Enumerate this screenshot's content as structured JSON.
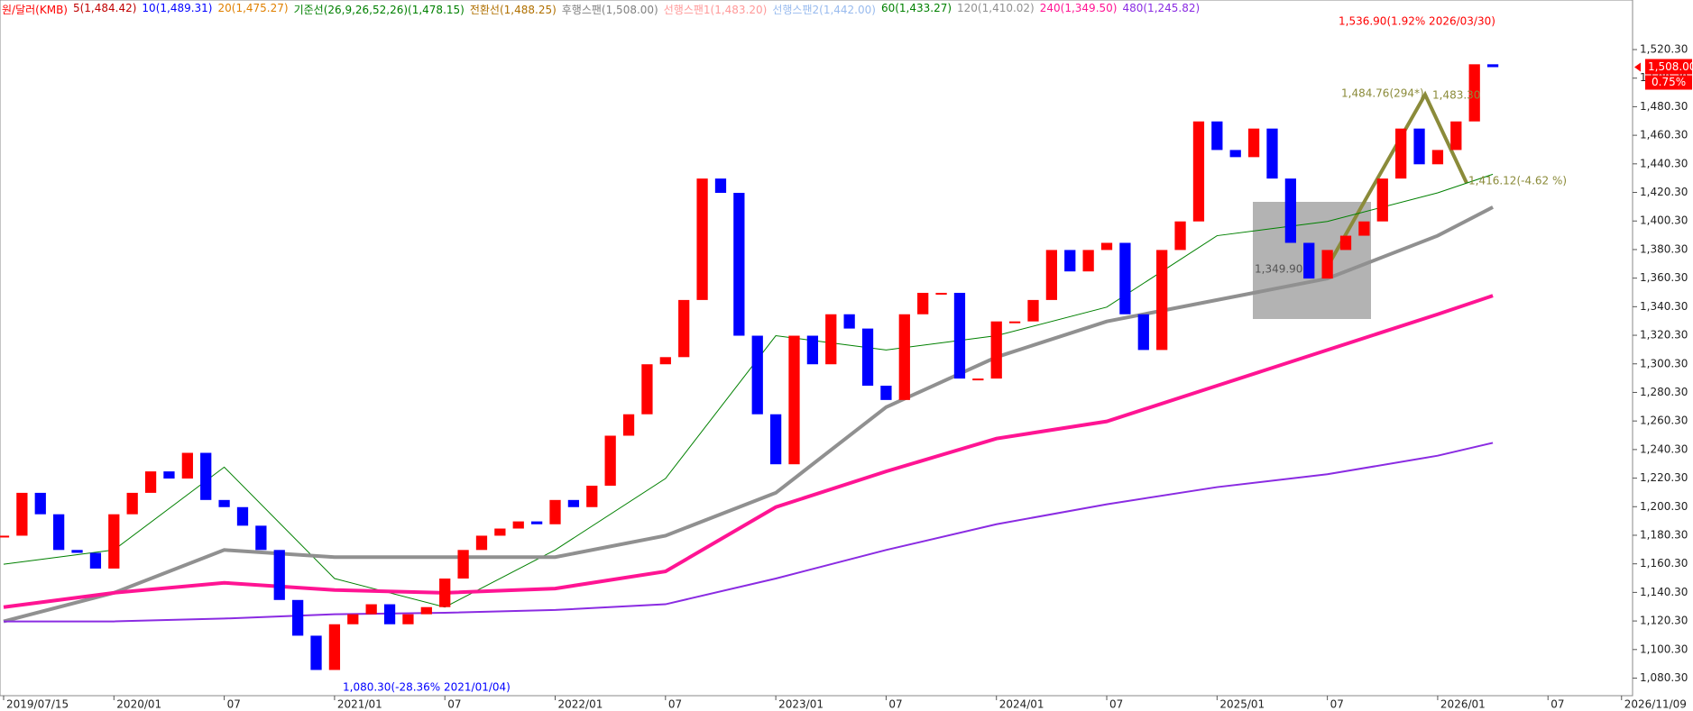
{
  "chart_data": {
    "type": "candle",
    "title": "원/달러(KMB)",
    "legend": [
      {
        "text": "5(1,484.42)",
        "color": "#c00000"
      },
      {
        "text": "10(1,489.31)",
        "color": "#0000ff"
      },
      {
        "text": "20(1,475.27)",
        "color": "#e08000"
      },
      {
        "text": "기준선(26,9,26,52,26)(1,478.15)",
        "color": "#008000"
      },
      {
        "text": "전환선(1,488.25)",
        "color": "#b07000"
      },
      {
        "text": "후행스팬(1,508.00)",
        "color": "#808080"
      },
      {
        "text": "선행스팬1(1,483.20)",
        "color": "#ff9999"
      },
      {
        "text": "선행스팬2(1,442.00)",
        "color": "#99bbee"
      }
    ],
    "categories": [
      "2019/07",
      "2019/08",
      "2019/09",
      "2019/10",
      "2019/11",
      "2019/12",
      "2020/01",
      "2020/02",
      "2020/03",
      "2020/04",
      "2020/05",
      "2020/06",
      "2020/07",
      "2020/08",
      "2020/09",
      "2020/10",
      "2020/11",
      "2020/12",
      "2021/01",
      "2021/02",
      "2021/03",
      "2021/04",
      "2021/05",
      "2021/06",
      "2021/07",
      "2021/08",
      "2021/09",
      "2021/10",
      "2021/11",
      "2021/12",
      "2022/01",
      "2022/02",
      "2022/03",
      "2022/04",
      "2022/05",
      "2022/06",
      "2022/07",
      "2022/08",
      "2022/09",
      "2022/10",
      "2022/11",
      "2022/12",
      "2023/01",
      "2023/02",
      "2023/03",
      "2023/04",
      "2023/05",
      "2023/06",
      "2023/07",
      "2023/08",
      "2023/09",
      "2023/10",
      "2023/11",
      "2023/12",
      "2024/01",
      "2024/02",
      "2024/03",
      "2024/04",
      "2024/05",
      "2024/06",
      "2024/07",
      "2024/08",
      "2024/09",
      "2024/10",
      "2024/11",
      "2024/12",
      "2025/01",
      "2025/02",
      "2025/03",
      "2025/04",
      "2025/05",
      "2025/06",
      "2025/07",
      "2025/08",
      "2025/09",
      "2025/10",
      "2025/11",
      "2025/12",
      "2026/01",
      "2026/02",
      "2026/03",
      "2026/04"
    ],
    "values": [
      1180,
      1210,
      1195,
      1170,
      1168,
      1157,
      1195,
      1210,
      1225,
      1220,
      1238,
      1205,
      1200,
      1187,
      1170,
      1135,
      1110,
      1086,
      1118,
      1125,
      1132,
      1118,
      1125,
      1130,
      1150,
      1170,
      1180,
      1185,
      1190,
      1188,
      1205,
      1200,
      1215,
      1250,
      1265,
      1300,
      1305,
      1345,
      1430,
      1420,
      1320,
      1265,
      1230,
      1320,
      1300,
      1335,
      1325,
      1285,
      1275,
      1335,
      1350,
      1350,
      1290,
      1290,
      1330,
      1330,
      1345,
      1380,
      1365,
      1380,
      1385,
      1335,
      1310,
      1380,
      1400,
      1470,
      1450,
      1445,
      1465,
      1430,
      1385,
      1360,
      1380,
      1390,
      1400,
      1430,
      1465,
      1440,
      1450,
      1470,
      1510,
      1508
    ],
    "up_color": "#ff0000",
    "down_color": "#0000ff",
    "series": [
      {
        "name": "60(1,433.27)",
        "color": "#008000",
        "width": 1,
        "x": [
          "2019/07",
          "2020/01",
          "2020/07",
          "2021/01",
          "2021/07",
          "2022/01",
          "2022/07",
          "2023/01",
          "2023/07",
          "2024/01",
          "2024/07",
          "2025/01",
          "2025/07",
          "2026/01",
          "2026/04"
        ],
        "values": [
          1160,
          1170,
          1228,
          1150,
          1130,
          1170,
          1220,
          1320,
          1310,
          1320,
          1340,
          1390,
          1400,
          1420,
          1433
        ]
      },
      {
        "name": "120(1,410.02)",
        "color": "#909090",
        "width": 4,
        "x": [
          "2019/07",
          "2020/01",
          "2020/07",
          "2021/01",
          "2021/07",
          "2022/01",
          "2022/07",
          "2023/01",
          "2023/07",
          "2024/01",
          "2024/07",
          "2025/01",
          "2025/07",
          "2026/01",
          "2026/04"
        ],
        "values": [
          1120,
          1140,
          1170,
          1165,
          1165,
          1165,
          1180,
          1210,
          1270,
          1305,
          1330,
          1345,
          1360,
          1390,
          1410
        ]
      },
      {
        "name": "240(1,349.50)",
        "color": "#ff1493",
        "width": 4,
        "x": [
          "2019/07",
          "2020/01",
          "2020/07",
          "2021/01",
          "2021/07",
          "2022/01",
          "2022/07",
          "2023/01",
          "2023/07",
          "2024/01",
          "2024/07",
          "2025/01",
          "2025/07",
          "2026/01",
          "2026/04"
        ],
        "values": [
          1130,
          1140,
          1147,
          1142,
          1140,
          1143,
          1155,
          1200,
          1225,
          1248,
          1260,
          1285,
          1310,
          1335,
          1348
        ]
      },
      {
        "name": "480(1,245.82)",
        "color": "#8a2be2",
        "width": 2,
        "x": [
          "2019/07",
          "2020/01",
          "2020/07",
          "2021/01",
          "2021/07",
          "2022/01",
          "2022/07",
          "2023/01",
          "2023/07",
          "2024/01",
          "2024/07",
          "2025/01",
          "2025/07",
          "2026/01",
          "2026/04"
        ],
        "values": [
          1120,
          1120,
          1122,
          1125,
          1126,
          1128,
          1132,
          1150,
          1170,
          1188,
          1202,
          1214,
          1223,
          1236,
          1245
        ]
      }
    ],
    "ylim": [
      1068,
      1555
    ],
    "yticks": [
      {
        "value": 1080.3,
        "label": "1,080.30"
      },
      {
        "value": 1100.3,
        "label": "1,100.30"
      },
      {
        "value": 1120.3,
        "label": "1,120.30"
      },
      {
        "value": 1140.3,
        "label": "1,140.30"
      },
      {
        "value": 1160.3,
        "label": "1,160.30"
      },
      {
        "value": 1180.3,
        "label": "1,180.30"
      },
      {
        "value": 1200.3,
        "label": "1,200.30"
      },
      {
        "value": 1220.3,
        "label": "1,220.30"
      },
      {
        "value": 1240.3,
        "label": "1,240.30"
      },
      {
        "value": 1260.3,
        "label": "1,260.30"
      },
      {
        "value": 1280.3,
        "label": "1,280.30"
      },
      {
        "value": 1300.3,
        "label": "1,300.30"
      },
      {
        "value": 1320.3,
        "label": "1,320.30"
      },
      {
        "value": 1340.3,
        "label": "1,340.30"
      },
      {
        "value": 1360.3,
        "label": "1,360.30"
      },
      {
        "value": 1380.3,
        "label": "1,380.30"
      },
      {
        "value": 1400.3,
        "label": "1,400.30"
      },
      {
        "value": 1420.3,
        "label": "1,420.30"
      },
      {
        "value": 1440.3,
        "label": "1,440.30"
      },
      {
        "value": 1460.3,
        "label": "1,460.30"
      },
      {
        "value": 1480.3,
        "label": "1,480.30"
      },
      {
        "value": 1500.3,
        "label": "1,500.30"
      },
      {
        "value": 1520.3,
        "label": "1,520.30"
      }
    ],
    "xticks": [
      {
        "value": 0,
        "label": "2019/07/15"
      },
      {
        "value": 6,
        "label": "2020/01"
      },
      {
        "value": 12,
        "label": "07"
      },
      {
        "value": 18,
        "label": "2021/01"
      },
      {
        "value": 24,
        "label": "07"
      },
      {
        "value": 30,
        "label": "2022/01"
      },
      {
        "value": 36,
        "label": "07"
      },
      {
        "value": 42,
        "label": "2023/01"
      },
      {
        "value": 48,
        "label": "07"
      },
      {
        "value": 54,
        "label": "2024/01"
      },
      {
        "value": 60,
        "label": "07"
      },
      {
        "value": 66,
        "label": "2025/01"
      },
      {
        "value": 72,
        "label": "07"
      },
      {
        "value": 78,
        "label": "2026/01"
      },
      {
        "value": 84,
        "label": "07"
      },
      {
        "value": 88,
        "label": "2026/11/09"
      }
    ],
    "xlim": [
      0,
      88.6
    ],
    "annotations": [
      "1,536.90(1.92% 2026/03/30)",
      "1,080.30(-28.36% 2021/01/04)",
      "1,484.76(294*)",
      "1,483.30",
      "1,416.12(-4.62 %)",
      "1,349.90"
    ],
    "last_price": {
      "value": 1508,
      "label": "1,508.00",
      "change": "0.75%"
    }
  }
}
